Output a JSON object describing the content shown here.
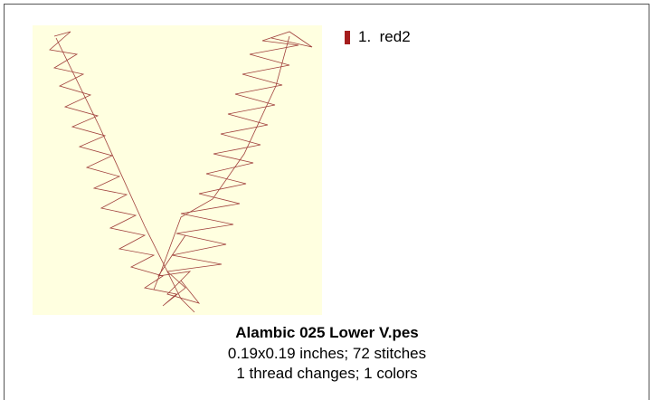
{
  "legend": [
    {
      "label": "1.  red2",
      "color": "#a51d1d"
    }
  ],
  "caption": {
    "title": "Alambic 025 Lower V.pes",
    "size": "0.19x0.19 inches; 72 stitches",
    "threads": "1 thread changes; 1 colors"
  }
}
